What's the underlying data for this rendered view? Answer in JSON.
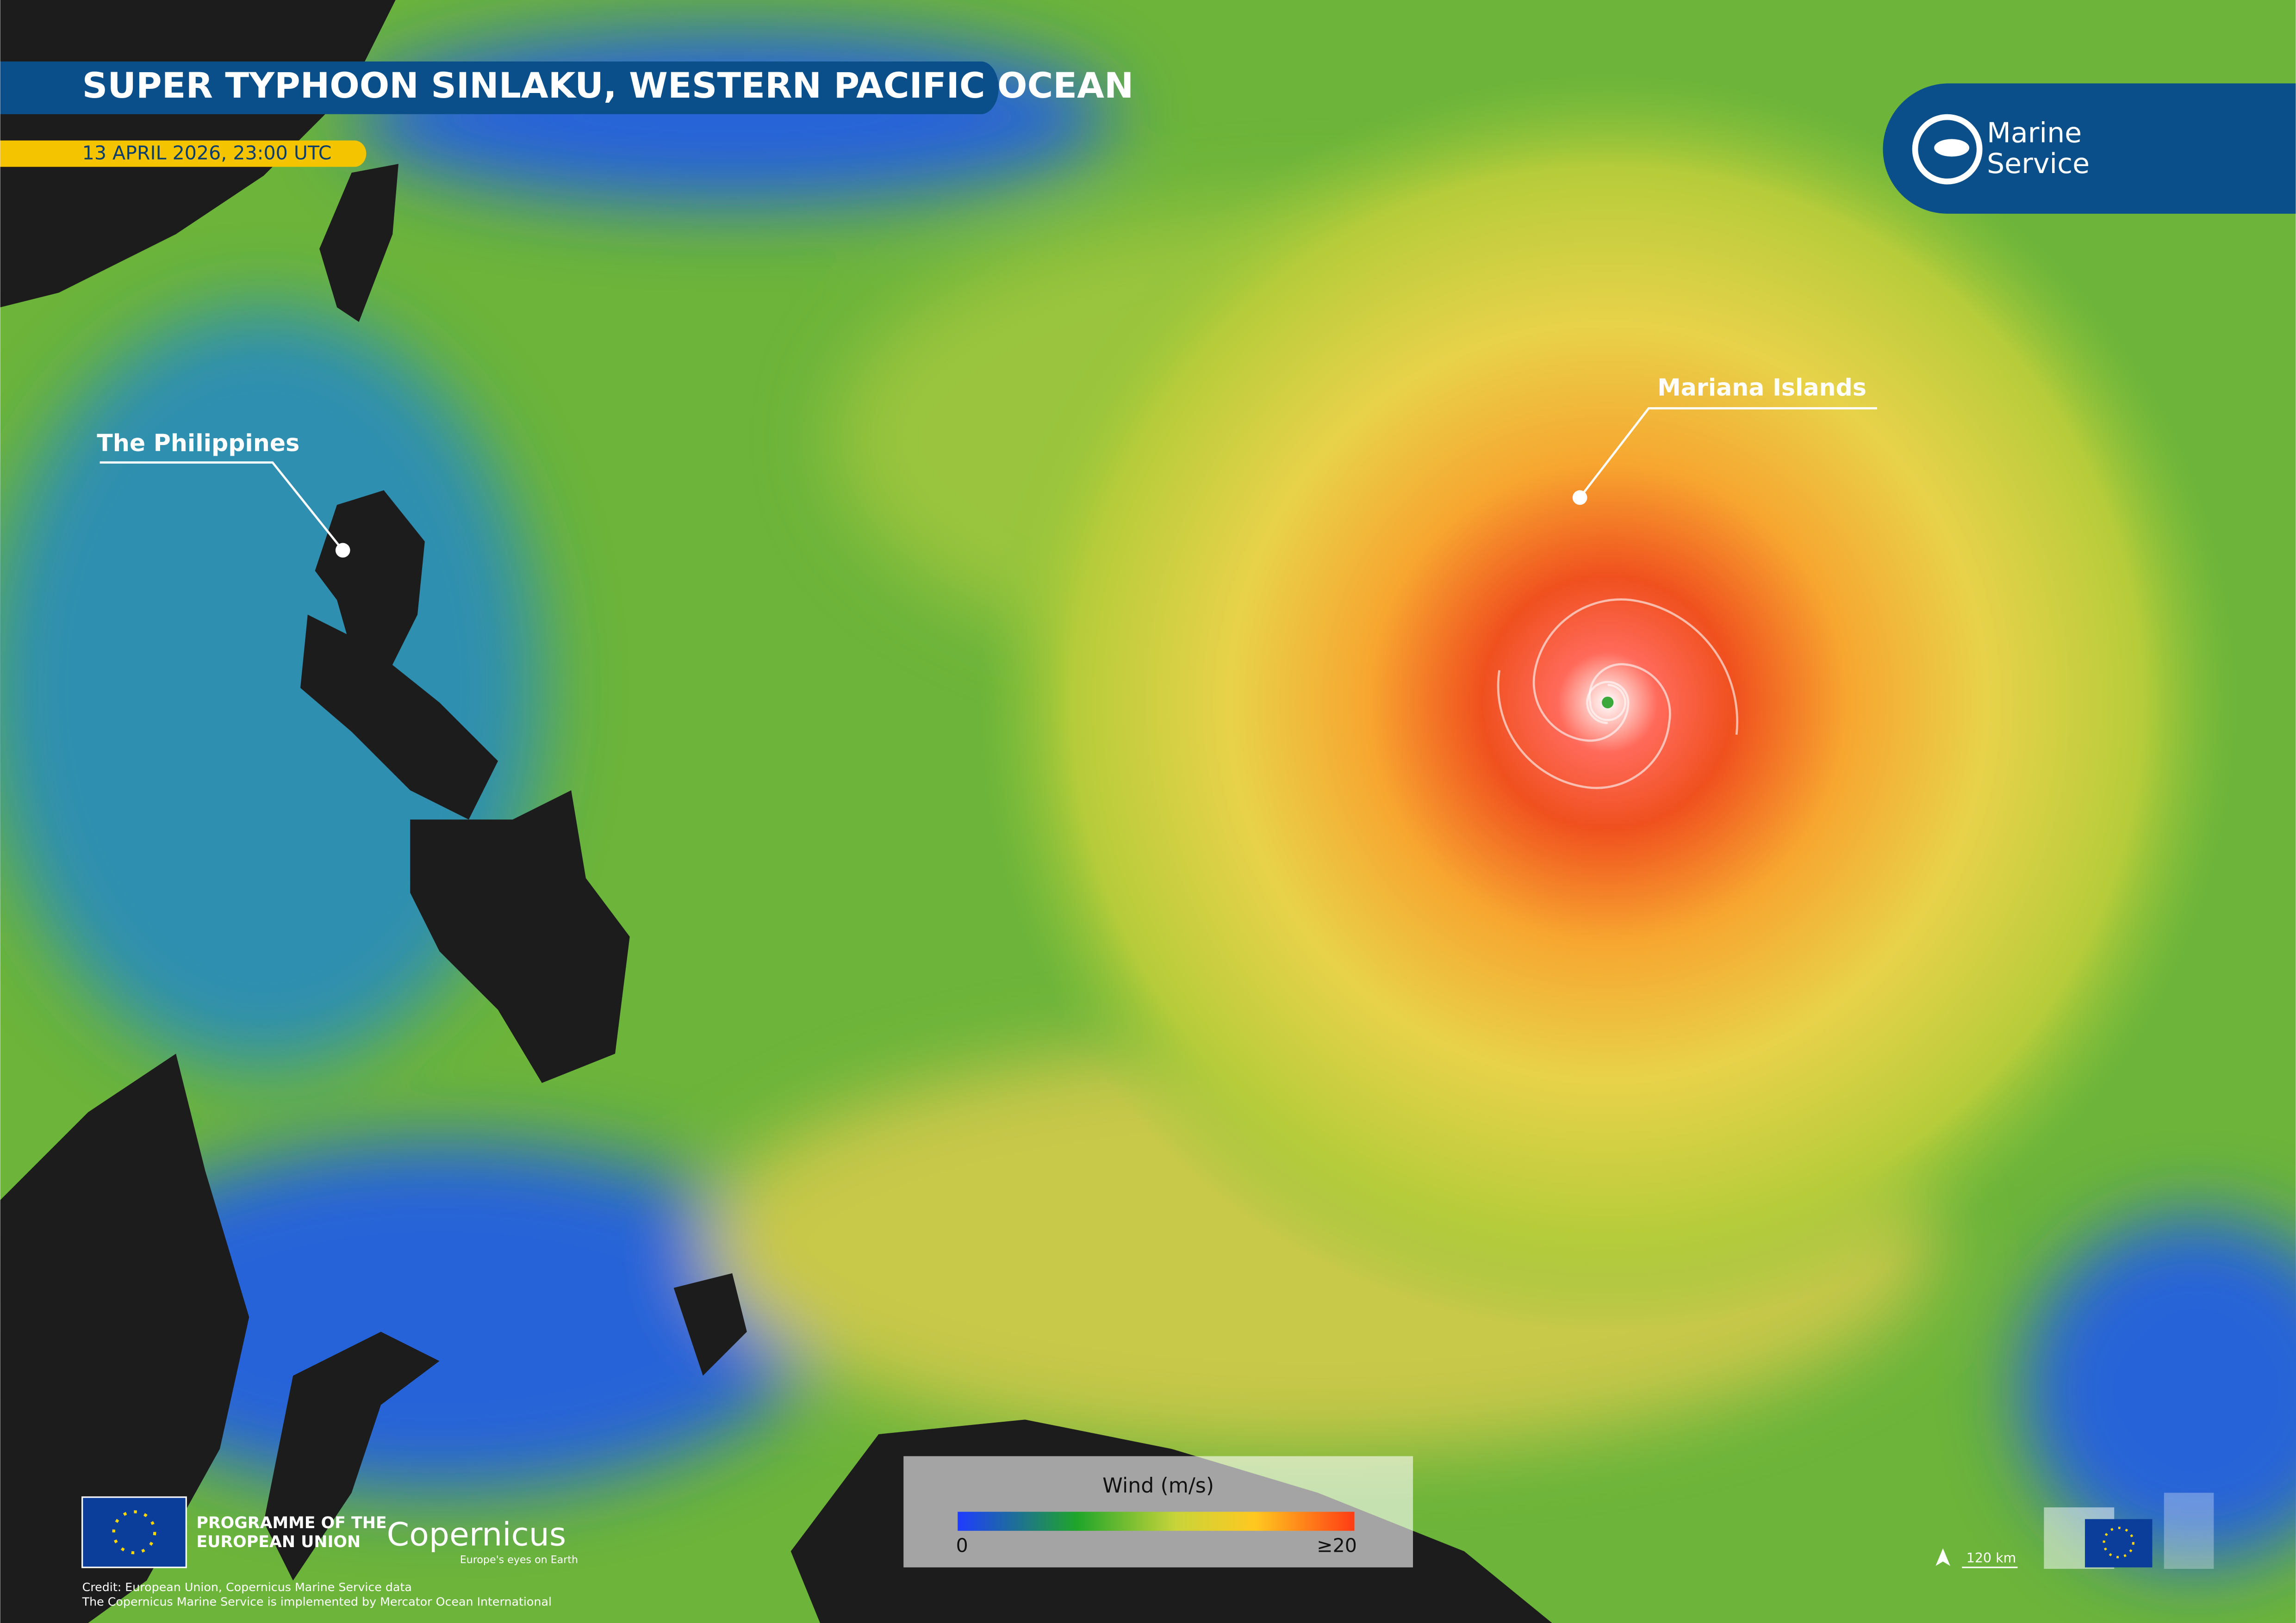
{
  "header": {
    "title": "SUPER TYPHOON SINLAKU, WESTERN PACIFIC OCEAN",
    "date": "13 APRIL 2026, 23:00 UTC"
  },
  "logo": {
    "line1": "Marine",
    "line2": "Service"
  },
  "labels": {
    "philippines": "The Philippines",
    "mariana": "Mariana Islands"
  },
  "legend": {
    "title": "Wind (m/s)",
    "min_label": "0",
    "max_label": "≥20"
  },
  "footer": {
    "eu_line1": "PROGRAMME OF THE",
    "eu_line2": "EUROPEAN UNION",
    "copernicus": "Copernicus",
    "copernicus_tagline": "Europe's eyes on Earth",
    "credit1": "Credit: European Union, Copernicus Marine Service data",
    "credit2": "The Copernicus Marine Service is implemented by Mercator Ocean International",
    "scale": "120 km"
  }
}
